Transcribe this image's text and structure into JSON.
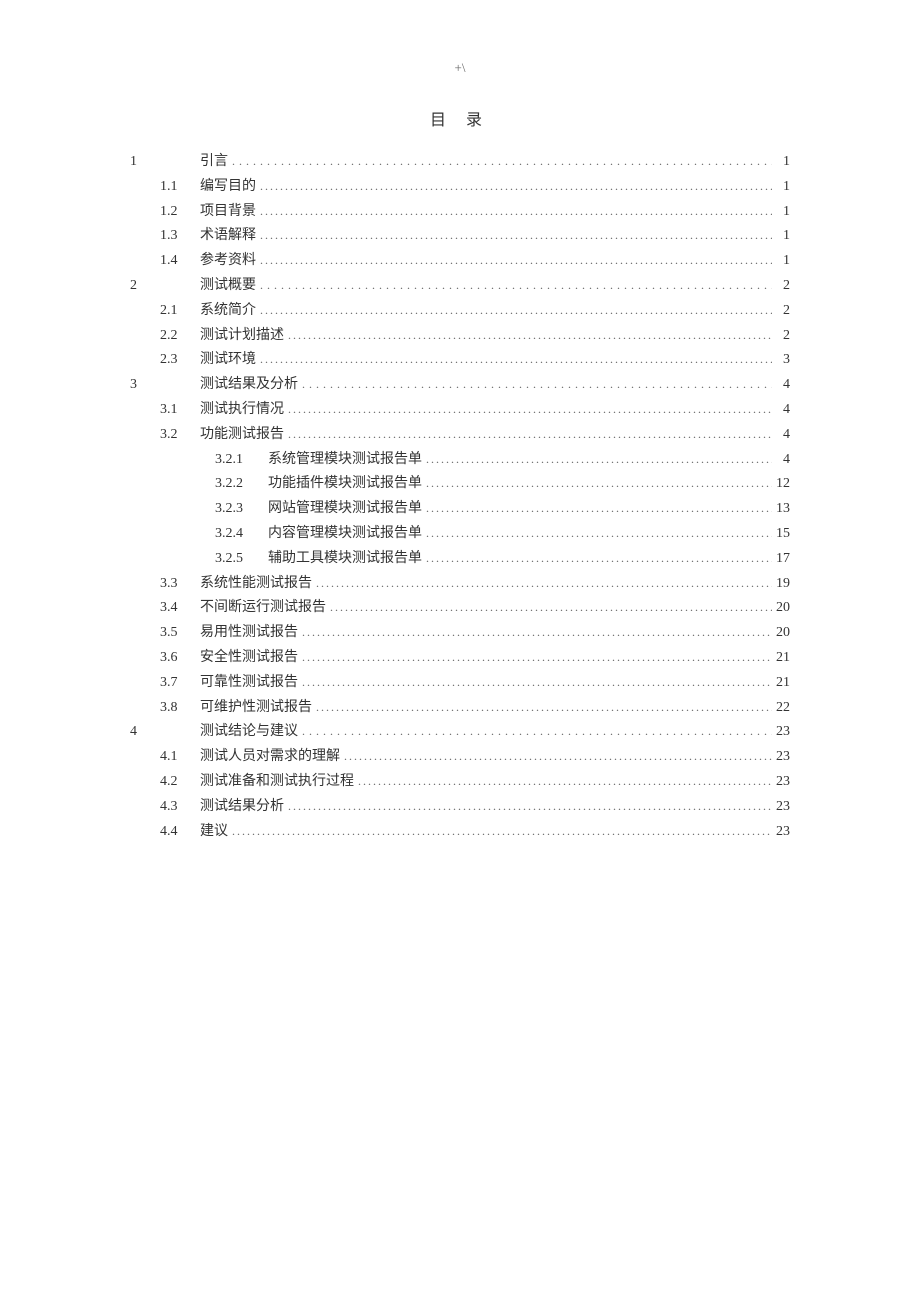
{
  "header_mark": "+\\",
  "toc_title": "目  录",
  "entries": [
    {
      "level": 1,
      "num": "1",
      "title": "引言",
      "page": "1"
    },
    {
      "level": 2,
      "num": "1.1",
      "title": "编写目的",
      "page": "1"
    },
    {
      "level": 2,
      "num": "1.2",
      "title": "项目背景",
      "page": "1"
    },
    {
      "level": 2,
      "num": "1.3",
      "title": "术语解释",
      "page": "1"
    },
    {
      "level": 2,
      "num": "1.4",
      "title": "参考资料",
      "page": "1"
    },
    {
      "level": 1,
      "num": "2",
      "title": "测试概要",
      "page": "2"
    },
    {
      "level": 2,
      "num": "2.1",
      "title": "系统简介",
      "page": "2"
    },
    {
      "level": 2,
      "num": "2.2",
      "title": "测试计划描述",
      "page": "2"
    },
    {
      "level": 2,
      "num": "2.3",
      "title": "测试环境",
      "page": "3"
    },
    {
      "level": 1,
      "num": "3",
      "title": "测试结果及分析",
      "page": "4"
    },
    {
      "level": 2,
      "num": "3.1",
      "title": "测试执行情况",
      "page": "4"
    },
    {
      "level": 2,
      "num": "3.2",
      "title": "功能测试报告",
      "page": "4"
    },
    {
      "level": 3,
      "num": "3.2.1",
      "title": "系统管理模块测试报告单",
      "page": "4"
    },
    {
      "level": 3,
      "num": "3.2.2",
      "title": "功能插件模块测试报告单",
      "page": "12"
    },
    {
      "level": 3,
      "num": "3.2.3",
      "title": "网站管理模块测试报告单",
      "page": "13"
    },
    {
      "level": 3,
      "num": "3.2.4",
      "title": "内容管理模块测试报告单",
      "page": "15"
    },
    {
      "level": 3,
      "num": "3.2.5",
      "title": "辅助工具模块测试报告单",
      "page": "17"
    },
    {
      "level": 2,
      "num": "3.3",
      "title": "系统性能测试报告",
      "page": "19"
    },
    {
      "level": 2,
      "num": "3.4",
      "title": "不间断运行测试报告",
      "page": "20"
    },
    {
      "level": 2,
      "num": "3.5",
      "title": "易用性测试报告",
      "page": "20"
    },
    {
      "level": 2,
      "num": "3.6",
      "title": "安全性测试报告",
      "page": "21"
    },
    {
      "level": 2,
      "num": "3.7",
      "title": "可靠性测试报告",
      "page": "21"
    },
    {
      "level": 2,
      "num": "3.8",
      "title": "可维护性测试报告",
      "page": "22"
    },
    {
      "level": 1,
      "num": "4",
      "title": "测试结论与建议",
      "page": "23"
    },
    {
      "level": 2,
      "num": "4.1",
      "title": "测试人员对需求的理解",
      "page": "23"
    },
    {
      "level": 2,
      "num": "4.2",
      "title": "测试准备和测试执行过程",
      "page": "23"
    },
    {
      "level": 2,
      "num": "4.3",
      "title": "测试结果分析",
      "page": "23"
    },
    {
      "level": 2,
      "num": "4.4",
      "title": "建议",
      "page": "23"
    }
  ]
}
